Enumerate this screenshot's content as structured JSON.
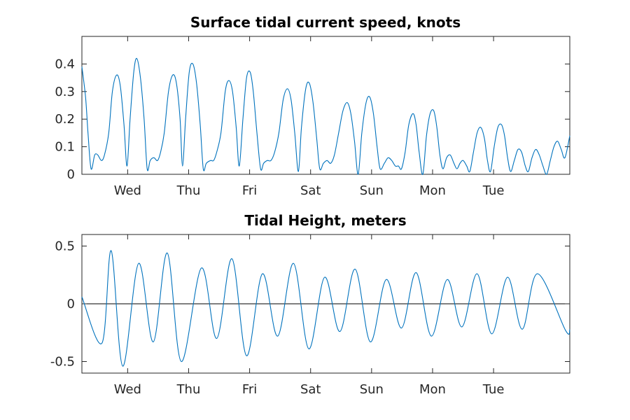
{
  "colors": {
    "series": "#0072BD",
    "axes": "#262626",
    "zero_line": "#000000"
  },
  "chart_data": [
    {
      "type": "line",
      "title": "Surface tidal current speed, knots",
      "xlabel": "",
      "ylabel": "",
      "xlim": [
        0,
        8
      ],
      "ylim": [
        0,
        0.5
      ],
      "yticks": [
        0,
        0.1,
        0.2,
        0.3,
        0.4
      ],
      "ytick_labels": [
        "0",
        "0.1",
        "0.2",
        "0.3",
        "0.4"
      ],
      "xticks": [
        0.75,
        1.75,
        2.75,
        3.75,
        4.75,
        5.75,
        6.75
      ],
      "xtick_labels": [
        "Wed",
        "Thu",
        "Fri",
        "Sat",
        "Sun",
        "Mon",
        "Tue"
      ],
      "grid": false,
      "series": [
        {
          "values": [
            [
              0.0,
              0.39
            ],
            [
              0.06,
              0.28
            ],
            [
              0.1,
              0.15
            ],
            [
              0.15,
              0.02
            ],
            [
              0.21,
              0.07
            ],
            [
              0.26,
              0.07
            ],
            [
              0.32,
              0.05
            ],
            [
              0.37,
              0.07
            ],
            [
              0.44,
              0.15
            ],
            [
              0.5,
              0.3
            ],
            [
              0.57,
              0.36
            ],
            [
              0.63,
              0.32
            ],
            [
              0.69,
              0.18
            ],
            [
              0.74,
              0.03
            ],
            [
              0.79,
              0.2
            ],
            [
              0.85,
              0.37
            ],
            [
              0.9,
              0.42
            ],
            [
              0.96,
              0.35
            ],
            [
              1.02,
              0.2
            ],
            [
              1.07,
              0.02
            ],
            [
              1.12,
              0.05
            ],
            [
              1.18,
              0.06
            ],
            [
              1.24,
              0.05
            ],
            [
              1.29,
              0.08
            ],
            [
              1.35,
              0.15
            ],
            [
              1.42,
              0.3
            ],
            [
              1.49,
              0.36
            ],
            [
              1.55,
              0.33
            ],
            [
              1.61,
              0.2
            ],
            [
              1.65,
              0.03
            ],
            [
              1.7,
              0.2
            ],
            [
              1.76,
              0.37
            ],
            [
              1.82,
              0.4
            ],
            [
              1.88,
              0.33
            ],
            [
              1.94,
              0.18
            ],
            [
              1.99,
              0.02
            ],
            [
              2.04,
              0.04
            ],
            [
              2.11,
              0.05
            ],
            [
              2.16,
              0.05
            ],
            [
              2.21,
              0.08
            ],
            [
              2.28,
              0.15
            ],
            [
              2.35,
              0.3
            ],
            [
              2.41,
              0.34
            ],
            [
              2.47,
              0.3
            ],
            [
              2.53,
              0.17
            ],
            [
              2.58,
              0.03
            ],
            [
              2.64,
              0.2
            ],
            [
              2.7,
              0.35
            ],
            [
              2.76,
              0.37
            ],
            [
              2.81,
              0.3
            ],
            [
              2.87,
              0.15
            ],
            [
              2.93,
              0.02
            ],
            [
              2.98,
              0.04
            ],
            [
              3.04,
              0.05
            ],
            [
              3.1,
              0.05
            ],
            [
              3.16,
              0.08
            ],
            [
              3.23,
              0.15
            ],
            [
              3.3,
              0.27
            ],
            [
              3.37,
              0.31
            ],
            [
              3.43,
              0.27
            ],
            [
              3.49,
              0.15
            ],
            [
              3.55,
              0.01
            ],
            [
              3.6,
              0.17
            ],
            [
              3.67,
              0.31
            ],
            [
              3.73,
              0.33
            ],
            [
              3.79,
              0.26
            ],
            [
              3.85,
              0.13
            ],
            [
              3.9,
              0.02
            ],
            [
              3.96,
              0.04
            ],
            [
              4.02,
              0.05
            ],
            [
              4.08,
              0.04
            ],
            [
              4.14,
              0.07
            ],
            [
              4.21,
              0.15
            ],
            [
              4.28,
              0.23
            ],
            [
              4.35,
              0.26
            ],
            [
              4.41,
              0.22
            ],
            [
              4.47,
              0.12
            ],
            [
              4.53,
              0.0
            ],
            [
              4.59,
              0.15
            ],
            [
              4.66,
              0.26
            ],
            [
              4.72,
              0.28
            ],
            [
              4.78,
              0.22
            ],
            [
              4.84,
              0.1
            ],
            [
              4.89,
              0.02
            ],
            [
              4.96,
              0.04
            ],
            [
              5.02,
              0.06
            ],
            [
              5.08,
              0.05
            ],
            [
              5.14,
              0.03
            ],
            [
              5.19,
              0.03
            ],
            [
              5.24,
              0.02
            ],
            [
              5.3,
              0.08
            ],
            [
              5.36,
              0.18
            ],
            [
              5.43,
              0.22
            ],
            [
              5.48,
              0.18
            ],
            [
              5.53,
              0.08
            ],
            [
              5.59,
              0.0
            ],
            [
              5.65,
              0.14
            ],
            [
              5.71,
              0.22
            ],
            [
              5.77,
              0.23
            ],
            [
              5.82,
              0.17
            ],
            [
              5.87,
              0.07
            ],
            [
              5.92,
              0.02
            ],
            [
              5.98,
              0.06
            ],
            [
              6.04,
              0.07
            ],
            [
              6.1,
              0.04
            ],
            [
              6.15,
              0.02
            ],
            [
              6.2,
              0.04
            ],
            [
              6.25,
              0.05
            ],
            [
              6.31,
              0.03
            ],
            [
              6.36,
              0.01
            ],
            [
              6.42,
              0.08
            ],
            [
              6.48,
              0.15
            ],
            [
              6.54,
              0.17
            ],
            [
              6.6,
              0.13
            ],
            [
              6.65,
              0.05
            ],
            [
              6.7,
              0.01
            ],
            [
              6.76,
              0.1
            ],
            [
              6.82,
              0.17
            ],
            [
              6.88,
              0.18
            ],
            [
              6.93,
              0.14
            ],
            [
              6.98,
              0.06
            ],
            [
              7.03,
              0.01
            ],
            [
              7.09,
              0.05
            ],
            [
              7.15,
              0.09
            ],
            [
              7.21,
              0.08
            ],
            [
              7.27,
              0.03
            ],
            [
              7.32,
              0.01
            ],
            [
              7.38,
              0.06
            ],
            [
              7.44,
              0.09
            ],
            [
              7.5,
              0.07
            ],
            [
              7.56,
              0.03
            ],
            [
              7.62,
              0.0
            ],
            [
              7.68,
              0.05
            ],
            [
              7.74,
              0.1
            ],
            [
              7.8,
              0.12
            ],
            [
              7.86,
              0.09
            ],
            [
              7.92,
              0.06
            ],
            [
              8.0,
              0.14
            ]
          ]
        }
      ]
    },
    {
      "type": "line",
      "title": "Tidal Height, meters",
      "xlabel": "",
      "ylabel": "",
      "xlim": [
        0,
        8
      ],
      "ylim": [
        -0.6,
        0.6
      ],
      "yticks": [
        -0.5,
        0,
        0.5
      ],
      "ytick_labels": [
        "-0.5",
        "0",
        "0.5"
      ],
      "xticks": [
        0.75,
        1.75,
        2.75,
        3.75,
        4.75,
        5.75,
        6.75
      ],
      "xtick_labels": [
        "Wed",
        "Thu",
        "Fri",
        "Sat",
        "Sun",
        "Mon",
        "Tue"
      ],
      "grid": false,
      "zero_line": true,
      "series": [
        {
          "values": [
            [
              0.0,
              0.06
            ],
            [
              0.33,
              -0.34
            ],
            [
              0.48,
              0.46
            ],
            [
              0.67,
              -0.54
            ],
            [
              0.93,
              0.35
            ],
            [
              1.17,
              -0.33
            ],
            [
              1.4,
              0.44
            ],
            [
              1.63,
              -0.5
            ],
            [
              1.96,
              0.31
            ],
            [
              2.21,
              -0.3
            ],
            [
              2.46,
              0.39
            ],
            [
              2.7,
              -0.45
            ],
            [
              2.96,
              0.26
            ],
            [
              3.21,
              -0.28
            ],
            [
              3.47,
              0.35
            ],
            [
              3.72,
              -0.39
            ],
            [
              3.98,
              0.23
            ],
            [
              4.23,
              -0.24
            ],
            [
              4.48,
              0.3
            ],
            [
              4.73,
              -0.33
            ],
            [
              4.99,
              0.21
            ],
            [
              5.24,
              -0.21
            ],
            [
              5.48,
              0.27
            ],
            [
              5.73,
              -0.28
            ],
            [
              5.99,
              0.21
            ],
            [
              6.23,
              -0.2
            ],
            [
              6.48,
              0.26
            ],
            [
              6.72,
              -0.26
            ],
            [
              6.98,
              0.23
            ],
            [
              7.22,
              -0.22
            ],
            [
              7.47,
              0.26
            ],
            [
              7.93,
              -0.23
            ],
            [
              8.0,
              -0.22
            ]
          ]
        }
      ]
    }
  ]
}
